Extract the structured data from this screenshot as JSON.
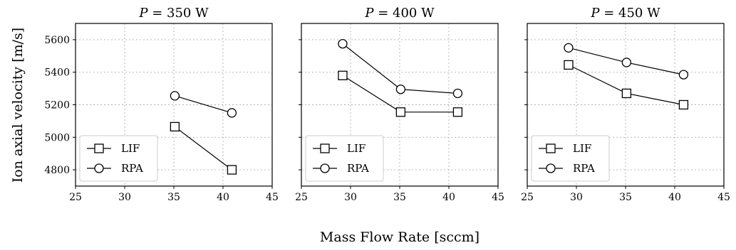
{
  "figure": {
    "ylabel": "Ion axial velocity [m/s]",
    "xlabel": "Mass Flow Rate [sccm]"
  },
  "chart_data": [
    {
      "type": "line",
      "title_var": "P",
      "title_value": "= 350 W",
      "xlim": [
        25,
        45
      ],
      "ylim": [
        4700,
        5700
      ],
      "xticks": [
        25,
        30,
        35,
        40,
        45
      ],
      "yticks": [
        4800,
        5000,
        5200,
        5400,
        5600
      ],
      "grid": true,
      "legend": "lower-left",
      "series": [
        {
          "name": "LIF",
          "marker": "square",
          "x": [
            35.1,
            40.9
          ],
          "y": [
            5065,
            4800
          ]
        },
        {
          "name": "RPA",
          "marker": "circle",
          "x": [
            35.1,
            40.9
          ],
          "y": [
            5255,
            5150
          ]
        }
      ]
    },
    {
      "type": "line",
      "title_var": "P",
      "title_value": "= 400 W",
      "xlim": [
        25,
        45
      ],
      "ylim": [
        4700,
        5700
      ],
      "xticks": [
        25,
        30,
        35,
        40,
        45
      ],
      "yticks": [
        4800,
        5000,
        5200,
        5400,
        5600
      ],
      "grid": true,
      "legend": "lower-left",
      "series": [
        {
          "name": "LIF",
          "marker": "square",
          "x": [
            29.2,
            35.1,
            40.9
          ],
          "y": [
            5380,
            5155,
            5155
          ]
        },
        {
          "name": "RPA",
          "marker": "circle",
          "x": [
            29.2,
            35.1,
            40.9
          ],
          "y": [
            5575,
            5295,
            5270
          ]
        }
      ]
    },
    {
      "type": "line",
      "title_var": "P",
      "title_value": "= 450 W",
      "xlim": [
        25,
        45
      ],
      "ylim": [
        4700,
        5700
      ],
      "xticks": [
        25,
        30,
        35,
        40,
        45
      ],
      "yticks": [
        4800,
        5000,
        5200,
        5400,
        5600
      ],
      "grid": true,
      "legend": "lower-left",
      "series": [
        {
          "name": "LIF",
          "marker": "square",
          "x": [
            29.2,
            35.1,
            40.9
          ],
          "y": [
            5445,
            5270,
            5200
          ]
        },
        {
          "name": "RPA",
          "marker": "circle",
          "x": [
            29.2,
            35.1,
            40.9
          ],
          "y": [
            5550,
            5460,
            5385
          ]
        }
      ]
    }
  ]
}
